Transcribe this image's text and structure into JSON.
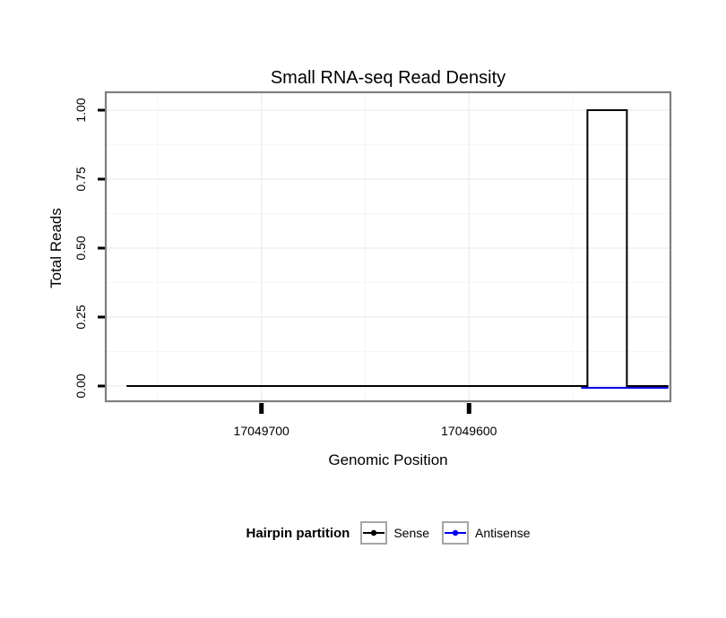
{
  "title": "Small RNA-seq Read Density",
  "axes": {
    "x_label": "Genomic Position",
    "y_label": "Total Reads",
    "x_ticks": [
      "17049700",
      "17049600"
    ],
    "y_ticks": [
      "1.00",
      "0.75",
      "0.50",
      "0.25",
      "0.00"
    ]
  },
  "legend": {
    "title": "Hairpin partition",
    "items": [
      {
        "label": "Sense",
        "color": "#000000"
      },
      {
        "label": "Antisense",
        "color": "#0000EE"
      }
    ]
  },
  "chart_data": {
    "type": "line",
    "title": "Small RNA-seq Read Density",
    "xlabel": "Genomic Position",
    "ylabel": "Total Reads",
    "x_reversed": true,
    "xlim": [
      17049775,
      17049503
    ],
    "ylim": [
      0,
      1
    ],
    "x_major_ticks": [
      17049700,
      17049600
    ],
    "x_minor_ticks": [
      17049750,
      17049650,
      17049550
    ],
    "y_major_ticks": [
      0,
      0.25,
      0.5,
      0.75,
      1
    ],
    "y_minor_ticks": [
      0.125,
      0.375,
      0.625,
      0.875
    ],
    "grid": true,
    "legend_position": "bottom",
    "series": [
      {
        "name": "Sense",
        "color": "#000000",
        "points": [
          [
            17049765,
            0
          ],
          [
            17049543,
            0
          ],
          [
            17049543,
            1
          ],
          [
            17049524,
            1
          ],
          [
            17049524,
            0
          ],
          [
            17049504,
            0
          ]
        ]
      },
      {
        "name": "Antisense",
        "color": "#0000EE",
        "points": [
          [
            17049546,
            0
          ],
          [
            17049504,
            0
          ]
        ]
      }
    ]
  }
}
